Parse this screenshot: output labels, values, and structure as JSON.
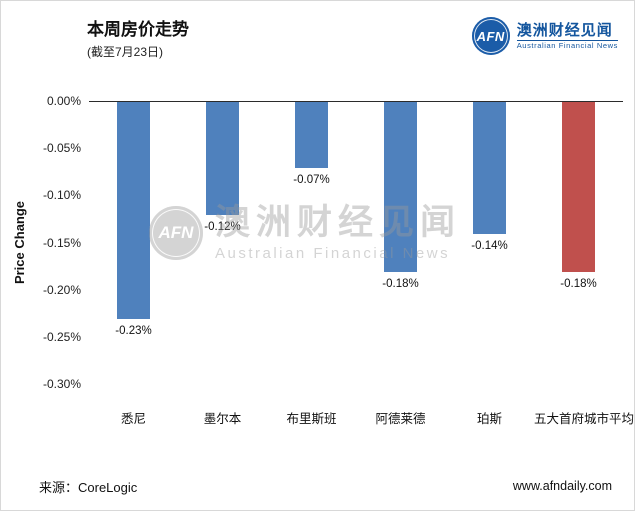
{
  "header": {
    "title": "本周房价走势",
    "subtitle": "(截至7月23日)",
    "logo": {
      "abbr": "AFN",
      "name_cn": "澳洲财经见闻",
      "name_en": "Australian Financial News"
    }
  },
  "chart_data": {
    "type": "bar",
    "title": "本周房价走势",
    "subtitle": "(截至7月23日)",
    "categories": [
      "悉尼",
      "墨尔本",
      "布里斯班",
      "阿德莱德",
      "珀斯",
      "五大首府城市平均"
    ],
    "values": [
      -0.23,
      -0.12,
      -0.07,
      -0.18,
      -0.14,
      -0.18
    ],
    "value_labels": [
      "-0.23%",
      "-0.12%",
      "-0.07%",
      "-0.18%",
      "-0.14%",
      "-0.18%"
    ],
    "bar_colors": [
      "#4f81bd",
      "#4f81bd",
      "#4f81bd",
      "#4f81bd",
      "#4f81bd",
      "#c0504d"
    ],
    "xlabel": "",
    "ylabel": "Price Change",
    "ylim": [
      -0.3,
      0
    ],
    "yticks": [
      "0.00%",
      "-0.05%",
      "-0.10%",
      "-0.15%",
      "-0.20%",
      "-0.25%",
      "-0.30%"
    ],
    "grid": "off",
    "legend": "none"
  },
  "watermark": {
    "abbr": "AFN",
    "text_cn": "澳洲财经见闻",
    "text_en": "Australian Financial News"
  },
  "footer": {
    "source": "来源：CoreLogic",
    "website": "www.afndaily.com"
  },
  "colors": {
    "bar_blue": "#4f81bd",
    "bar_red": "#c0504d",
    "brand_blue": "#14569e"
  }
}
